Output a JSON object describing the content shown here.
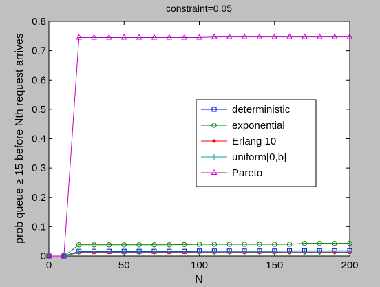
{
  "chart_data": {
    "type": "line",
    "title": "constraint=0.05",
    "xlabel": "N",
    "ylabel": "prob queue ≥ 15 before Nth request arrives",
    "xlim": [
      0,
      200
    ],
    "ylim": [
      0,
      0.8
    ],
    "xticks": [
      "0",
      "50",
      "100",
      "150",
      "200"
    ],
    "yticks": [
      "0",
      "0.1",
      "0.2",
      "0.3",
      "0.4",
      "0.5",
      "0.6",
      "0.7",
      "0.8"
    ],
    "grid": false,
    "legend_position": "center-right",
    "x": [
      0,
      10,
      20,
      30,
      40,
      50,
      60,
      70,
      80,
      90,
      100,
      110,
      120,
      130,
      140,
      150,
      160,
      170,
      180,
      190,
      200
    ],
    "series": [
      {
        "name": "deterministic",
        "color": "#0000ff",
        "marker": "square",
        "values": [
          0,
          0,
          0.016,
          0.016,
          0.016,
          0.016,
          0.016,
          0.016,
          0.016,
          0.016,
          0.017,
          0.017,
          0.017,
          0.017,
          0.017,
          0.017,
          0.018,
          0.018,
          0.018,
          0.018,
          0.018
        ]
      },
      {
        "name": "exponential",
        "color": "#008000",
        "marker": "circle",
        "values": [
          0,
          0,
          0.038,
          0.038,
          0.038,
          0.038,
          0.038,
          0.038,
          0.038,
          0.039,
          0.04,
          0.04,
          0.04,
          0.04,
          0.04,
          0.04,
          0.04,
          0.043,
          0.043,
          0.043,
          0.043
        ]
      },
      {
        "name": "Erlang 10",
        "color": "#ff0000",
        "marker": "dot",
        "values": [
          0,
          0,
          0.012,
          0.012,
          0.012,
          0.012,
          0.012,
          0.012,
          0.012,
          0.012,
          0.012,
          0.012,
          0.012,
          0.012,
          0.012,
          0.012,
          0.012,
          0.012,
          0.012,
          0.012,
          0.012
        ]
      },
      {
        "name": "uniform[0,b]",
        "color": "#00a0a0",
        "marker": "plus",
        "values": [
          0,
          0,
          0.014,
          0.014,
          0.014,
          0.014,
          0.014,
          0.014,
          0.014,
          0.014,
          0.014,
          0.014,
          0.014,
          0.014,
          0.014,
          0.014,
          0.014,
          0.014,
          0.014,
          0.014,
          0.014
        ]
      },
      {
        "name": "Pareto",
        "color": "#c000c0",
        "marker": "triangle",
        "values": [
          0,
          0,
          0.745,
          0.745,
          0.745,
          0.745,
          0.745,
          0.745,
          0.745,
          0.745,
          0.745,
          0.747,
          0.747,
          0.747,
          0.747,
          0.747,
          0.747,
          0.747,
          0.747,
          0.747,
          0.747
        ]
      }
    ]
  }
}
